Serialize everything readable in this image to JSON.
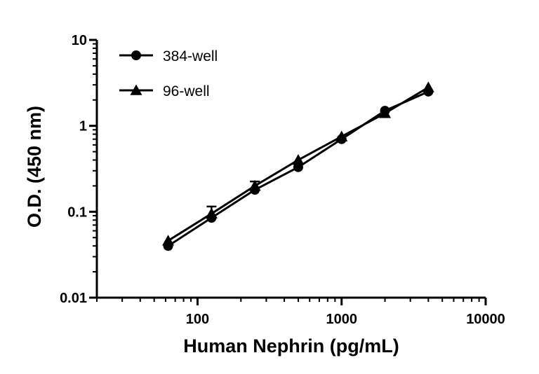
{
  "chart_data": {
    "type": "line",
    "xlabel": "Human Nephrin (pg/mL)",
    "ylabel": "O.D. (450 nm)",
    "x_scale": "log",
    "y_scale": "log",
    "xlim": [
      20,
      10000
    ],
    "ylim": [
      0.01,
      10
    ],
    "x_ticks": [
      {
        "value": 100,
        "label": "100"
      },
      {
        "value": 1000,
        "label": "1000"
      },
      {
        "value": 10000,
        "label": "10000"
      }
    ],
    "y_ticks": [
      {
        "value": 0.01,
        "label": "0.01"
      },
      {
        "value": 0.1,
        "label": "0.1"
      },
      {
        "value": 1,
        "label": "1"
      },
      {
        "value": 10,
        "label": "10"
      }
    ],
    "grid": false,
    "legend_position": "top-left",
    "series": [
      {
        "name": "384-well",
        "marker": "circle",
        "color": "#000000",
        "x": [
          62.5,
          125,
          250,
          500,
          1000,
          2000,
          4000
        ],
        "y": [
          0.04,
          0.085,
          0.18,
          0.33,
          0.7,
          1.5,
          2.5
        ]
      },
      {
        "name": "96-well",
        "marker": "triangle",
        "color": "#000000",
        "x": [
          62.5,
          125,
          250,
          500,
          1000,
          2000,
          4000
        ],
        "y": [
          0.046,
          0.095,
          0.2,
          0.4,
          0.75,
          1.4,
          2.8
        ],
        "error_upper": [
          0,
          0.115,
          0.225,
          0,
          0,
          0,
          0
        ]
      }
    ]
  }
}
